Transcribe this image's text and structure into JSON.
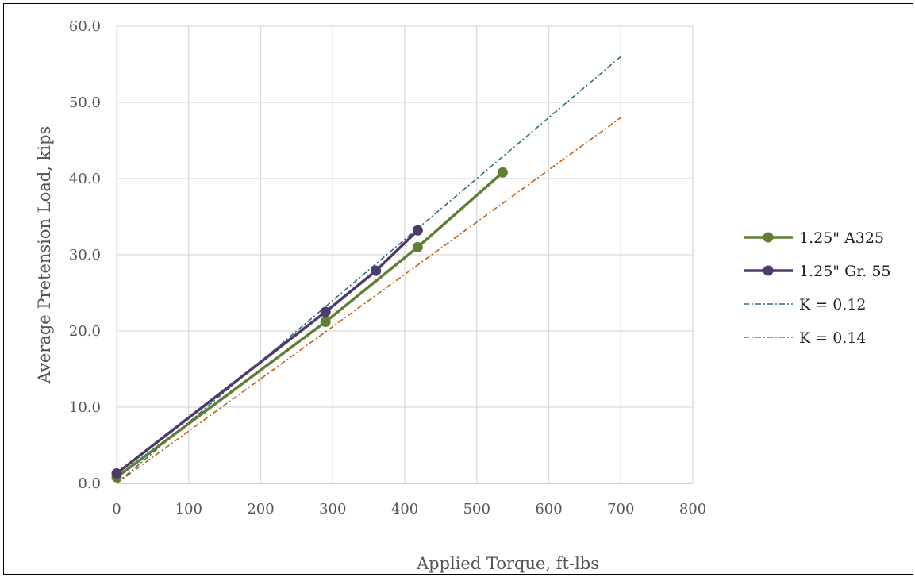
{
  "chart_data": {
    "type": "line",
    "xlabel": "Applied Torque, ft-lbs",
    "ylabel": "Average Pretension Load, kips",
    "xlim": [
      0,
      800
    ],
    "ylim": [
      0,
      60
    ],
    "x_ticks": [
      "0",
      "100",
      "200",
      "300",
      "400",
      "500",
      "600",
      "700",
      "800"
    ],
    "y_ticks": [
      "0.0",
      "10.0",
      "20.0",
      "30.0",
      "40.0",
      "50.0",
      "60.0"
    ],
    "grid": true,
    "legend_position": "right",
    "series": [
      {
        "name": "1.25\" A325",
        "style": "solid-markers",
        "color": "#5f7f34",
        "x": [
          0,
          290,
          418,
          536
        ],
        "y": [
          0.8,
          21.2,
          31.0,
          40.8
        ]
      },
      {
        "name": "1.25\" Gr. 55",
        "style": "solid-markers",
        "color": "#4f3b6b",
        "x": [
          0,
          290,
          360,
          418
        ],
        "y": [
          1.3,
          22.5,
          27.9,
          33.2
        ]
      },
      {
        "name": "K = 0.12",
        "style": "dash-dot",
        "color": "#2a6f83",
        "x": [
          0,
          700
        ],
        "y": [
          0,
          56.0
        ]
      },
      {
        "name": "K = 0.14",
        "style": "dash-dot",
        "color": "#c0600f",
        "x": [
          0,
          700
        ],
        "y": [
          0,
          48.0
        ]
      }
    ]
  }
}
